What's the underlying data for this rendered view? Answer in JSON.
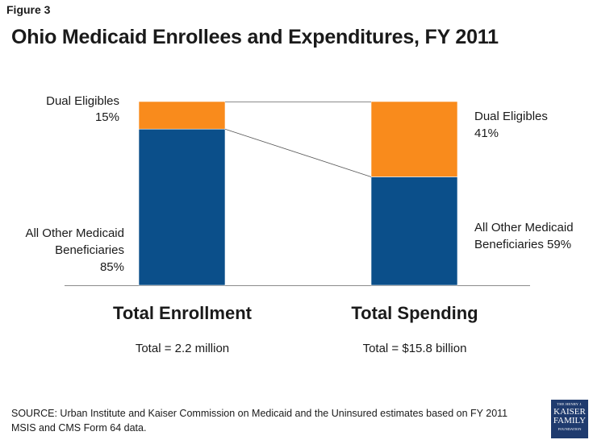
{
  "figure_label": "Figure 3",
  "title": "Ohio Medicaid Enrollees and Expenditures, FY 2011",
  "colors": {
    "dual": "#f98b1c",
    "other": "#0b4f8a",
    "axis": "#8c8c8c",
    "connector": "#555555"
  },
  "chart_data": {
    "type": "bar",
    "stacked": true,
    "normalized_percent": true,
    "title": "Ohio Medicaid Enrollees and Expenditures, FY 2011",
    "ylim": [
      0,
      100
    ],
    "categories": [
      "Total Enrollment",
      "Total Spending"
    ],
    "totals": [
      "Total = 2.2 million",
      "Total = $15.8 billion"
    ],
    "series": [
      {
        "name": "All Other Medicaid Beneficiaries",
        "values": [
          85,
          59
        ]
      },
      {
        "name": "Dual Eligibles",
        "values": [
          15,
          41
        ]
      }
    ]
  },
  "labels": {
    "enroll_dual_name": "Dual Eligibles",
    "enroll_dual_pct": "15%",
    "enroll_other_line1": "All Other Medicaid",
    "enroll_other_line2": "Beneficiaries",
    "enroll_other_pct": "85%",
    "spend_dual_name": "Dual Eligibles",
    "spend_dual_pct": "41%",
    "spend_other_line1": "All Other Medicaid",
    "spend_other_line2": "Beneficiaries 59%"
  },
  "source": "SOURCE: Urban Institute and Kaiser Commission on Medicaid and the Uninsured estimates based on FY 2011 MSIS and CMS Form 64 data.",
  "logo": {
    "line1": "THE HENRY J.",
    "line2": "KAISER",
    "line3": "FAMILY",
    "line4": "FOUNDATION"
  }
}
